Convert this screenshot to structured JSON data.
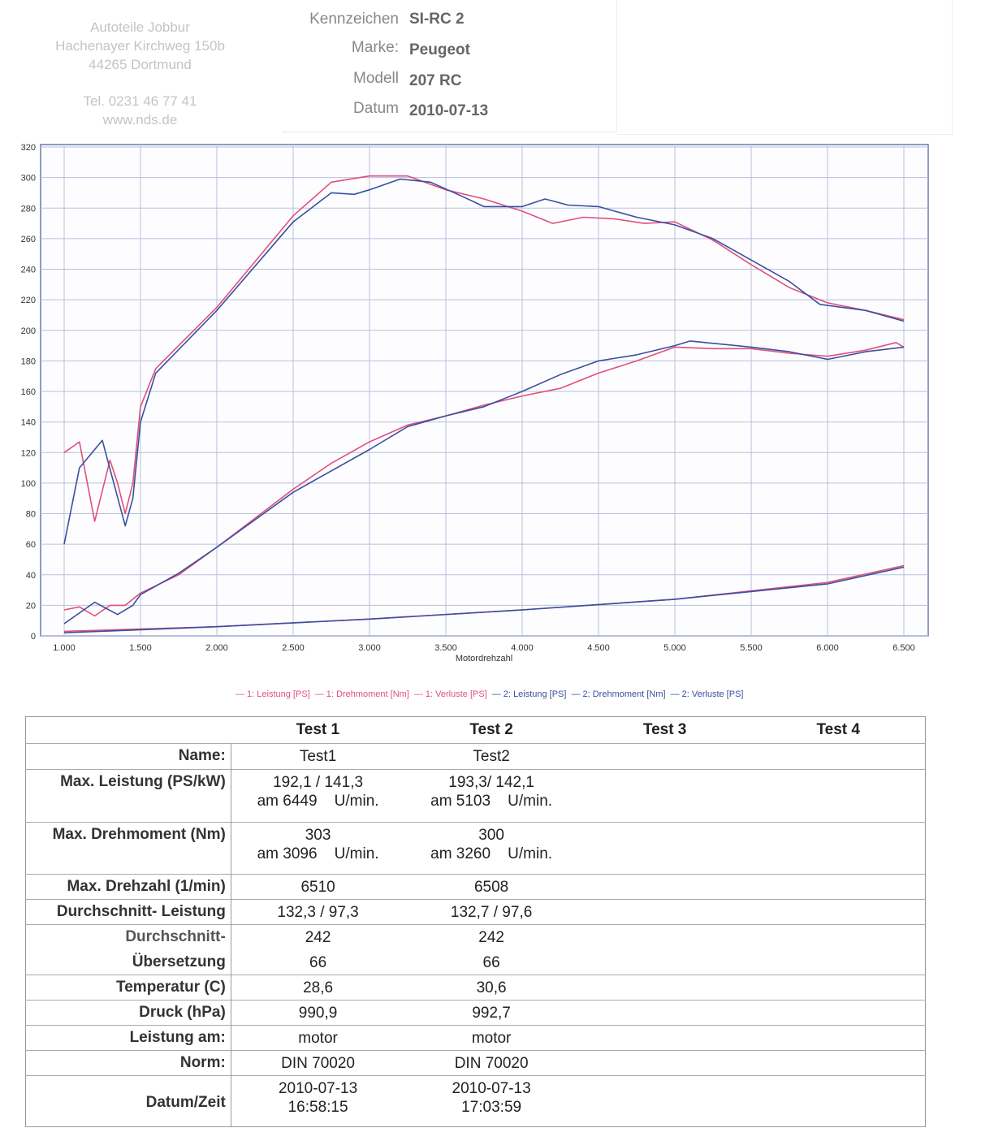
{
  "header": {
    "address_lines": [
      "Autoteile Jobbur",
      "Hachenayer Kirchweg 150b",
      "44265 Dortmund",
      "Tel. 0231 46 77 41",
      "www.nds.de"
    ],
    "fields": [
      {
        "label": "Kennzeichen",
        "value": "SI-RC 2"
      },
      {
        "label": "Marke:",
        "value": "Peugeot"
      },
      {
        "label": "Modell",
        "value": "207 RC"
      },
      {
        "label": "Datum",
        "value": "2010-07-13"
      }
    ]
  },
  "chart_data": {
    "type": "line",
    "xlabel": "Motordrehzahl",
    "xlim": [
      1000,
      6500
    ],
    "ylim": [
      0,
      320
    ],
    "grid": true,
    "legend_placement": "bottom",
    "x_ticks": [
      "1.000",
      "1.500",
      "2.000",
      "2.500",
      "3.000",
      "3.500",
      "4.000",
      "4.500",
      "5.000",
      "5.500",
      "6.000",
      "6.500"
    ],
    "y_ticks": [
      "0",
      "20",
      "40",
      "60",
      "80",
      "100",
      "120",
      "140",
      "160",
      "180",
      "200",
      "220",
      "240",
      "260",
      "280",
      "300",
      "320"
    ],
    "series": [
      {
        "name": "1: Leistung [PS]",
        "color": "#e0507a",
        "points": [
          [
            1000,
            17
          ],
          [
            1100,
            19
          ],
          [
            1200,
            13
          ],
          [
            1300,
            20
          ],
          [
            1400,
            20
          ],
          [
            1500,
            28
          ],
          [
            1750,
            40
          ],
          [
            2000,
            58
          ],
          [
            2500,
            96
          ],
          [
            2750,
            113
          ],
          [
            3000,
            127
          ],
          [
            3250,
            138
          ],
          [
            3500,
            144
          ],
          [
            3750,
            151
          ],
          [
            4000,
            157
          ],
          [
            4250,
            162
          ],
          [
            4500,
            172
          ],
          [
            4750,
            180
          ],
          [
            5000,
            189
          ],
          [
            5250,
            188
          ],
          [
            5500,
            188
          ],
          [
            5750,
            185
          ],
          [
            6000,
            183
          ],
          [
            6250,
            187
          ],
          [
            6449,
            192
          ],
          [
            6500,
            189
          ]
        ]
      },
      {
        "name": "1: Drehmoment [Nm]",
        "color": "#e0507a",
        "points": [
          [
            1000,
            120
          ],
          [
            1100,
            127
          ],
          [
            1200,
            75
          ],
          [
            1300,
            115
          ],
          [
            1350,
            100
          ],
          [
            1400,
            80
          ],
          [
            1450,
            100
          ],
          [
            1500,
            150
          ],
          [
            1600,
            175
          ],
          [
            2000,
            215
          ],
          [
            2500,
            275
          ],
          [
            2750,
            297
          ],
          [
            3000,
            301
          ],
          [
            3250,
            301
          ],
          [
            3500,
            292
          ],
          [
            3750,
            286
          ],
          [
            4000,
            278
          ],
          [
            4200,
            270
          ],
          [
            4400,
            274
          ],
          [
            4600,
            273
          ],
          [
            4800,
            270
          ],
          [
            5000,
            271
          ],
          [
            5250,
            259
          ],
          [
            5500,
            243
          ],
          [
            5750,
            228
          ],
          [
            6000,
            218
          ],
          [
            6250,
            213
          ],
          [
            6500,
            207
          ]
        ]
      },
      {
        "name": "1: Verluste [PS]",
        "color": "#e0507a",
        "points": [
          [
            1000,
            3
          ],
          [
            2000,
            6
          ],
          [
            3000,
            11
          ],
          [
            4000,
            17
          ],
          [
            5000,
            24
          ],
          [
            6000,
            35
          ],
          [
            6500,
            46
          ]
        ]
      },
      {
        "name": "2: Leistung [PS]",
        "color": "#3a4fa0",
        "points": [
          [
            1000,
            8
          ],
          [
            1200,
            22
          ],
          [
            1350,
            14
          ],
          [
            1450,
            20
          ],
          [
            1500,
            27
          ],
          [
            1750,
            41
          ],
          [
            2000,
            58
          ],
          [
            2500,
            94
          ],
          [
            2750,
            108
          ],
          [
            3000,
            122
          ],
          [
            3250,
            137
          ],
          [
            3500,
            144
          ],
          [
            3750,
            150
          ],
          [
            4000,
            160
          ],
          [
            4250,
            171
          ],
          [
            4500,
            180
          ],
          [
            4750,
            184
          ],
          [
            5000,
            190
          ],
          [
            5100,
            193
          ],
          [
            5500,
            189
          ],
          [
            5750,
            186
          ],
          [
            6000,
            181
          ],
          [
            6250,
            186
          ],
          [
            6500,
            189
          ]
        ]
      },
      {
        "name": "2: Drehmoment [Nm]",
        "color": "#3a4fa0",
        "points": [
          [
            1000,
            60
          ],
          [
            1100,
            110
          ],
          [
            1250,
            128
          ],
          [
            1400,
            72
          ],
          [
            1450,
            90
          ],
          [
            1500,
            140
          ],
          [
            1600,
            172
          ],
          [
            2000,
            213
          ],
          [
            2500,
            271
          ],
          [
            2750,
            290
          ],
          [
            2900,
            289
          ],
          [
            3000,
            292
          ],
          [
            3200,
            299
          ],
          [
            3400,
            297
          ],
          [
            3600,
            288
          ],
          [
            3750,
            281
          ],
          [
            4000,
            281
          ],
          [
            4150,
            286
          ],
          [
            4300,
            282
          ],
          [
            4500,
            281
          ],
          [
            4750,
            274
          ],
          [
            5000,
            269
          ],
          [
            5250,
            260
          ],
          [
            5500,
            246
          ],
          [
            5750,
            232
          ],
          [
            5950,
            217
          ],
          [
            6250,
            213
          ],
          [
            6500,
            206
          ]
        ]
      },
      {
        "name": "2: Verluste [PS]",
        "color": "#3a4fa0",
        "points": [
          [
            1000,
            2
          ],
          [
            2000,
            6
          ],
          [
            3000,
            11
          ],
          [
            4000,
            17
          ],
          [
            5000,
            24
          ],
          [
            6000,
            34
          ],
          [
            6500,
            45
          ]
        ]
      }
    ]
  },
  "table": {
    "headers": [
      "",
      "Test 1",
      "Test 2",
      "Test 3",
      "Test 4"
    ],
    "rows": [
      {
        "label": "Name:",
        "values": [
          "Test1",
          "Test2",
          "",
          ""
        ]
      },
      {
        "label": "Max. Leistung (PS/kW)",
        "values": [
          "192,1 / 141,3",
          "193,3/ 142,1",
          "",
          ""
        ],
        "sub": [
          "am 6449    U/min.",
          "am 5103    U/min.",
          "",
          ""
        ]
      },
      {
        "label": "Max. Drehmoment (Nm)",
        "values": [
          "303",
          "300",
          "",
          ""
        ],
        "sub": [
          "am 3096    U/min.",
          "am 3260    U/min.",
          "",
          ""
        ]
      },
      {
        "label": "Max. Drehzahl (1/min)",
        "values": [
          "6510",
          "6508",
          "",
          ""
        ]
      },
      {
        "label": "Durchschnitt- Leistung",
        "values": [
          "132,3 / 97,3",
          "132,7 / 97,6",
          "",
          ""
        ]
      },
      {
        "label": "Durchschnitt-",
        "values": [
          "242",
          "242",
          "",
          ""
        ]
      },
      {
        "label": "Übersetzung",
        "values": [
          "66",
          "66",
          "",
          ""
        ]
      },
      {
        "label": "Temperatur (C)",
        "values": [
          "28,6",
          "30,6",
          "",
          ""
        ]
      },
      {
        "label": "Druck (hPa)",
        "values": [
          "990,9",
          "992,7",
          "",
          ""
        ]
      },
      {
        "label": "Leistung am:",
        "values": [
          "motor",
          "motor",
          "",
          ""
        ]
      },
      {
        "label": "Norm:",
        "values": [
          "DIN 70020",
          "DIN 70020",
          "",
          ""
        ]
      },
      {
        "label": "Datum/Zeit",
        "values": [
          "2010-07-13",
          "2010-07-13",
          "",
          ""
        ],
        "sub": [
          "16:58:15",
          "17:03:59",
          "",
          ""
        ]
      }
    ]
  }
}
